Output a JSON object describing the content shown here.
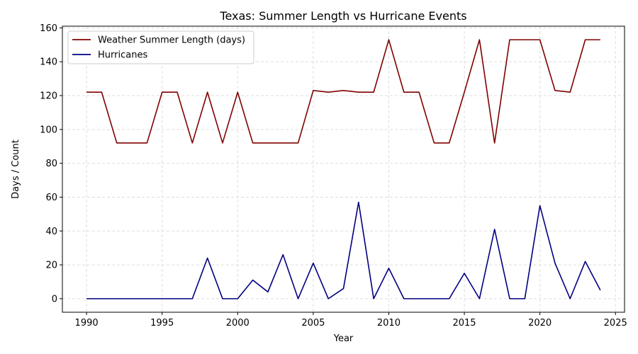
{
  "chart_data": {
    "type": "line",
    "title": "Texas: Summer Length vs Hurricane Events",
    "xlabel": "Year",
    "ylabel": "Days / Count",
    "xlim": [
      1988.4,
      2025.6
    ],
    "ylim": [
      -8,
      161
    ],
    "xticks": [
      1990,
      1995,
      2000,
      2005,
      2010,
      2015,
      2020,
      2025
    ],
    "yticks": [
      0,
      20,
      40,
      60,
      80,
      100,
      120,
      140,
      160
    ],
    "grid": true,
    "legend_position": "top-left",
    "x": [
      1990,
      1991,
      1992,
      1993,
      1994,
      1995,
      1996,
      1997,
      1998,
      1999,
      2000,
      2001,
      2002,
      2003,
      2004,
      2005,
      2006,
      2007,
      2008,
      2009,
      2010,
      2011,
      2012,
      2013,
      2014,
      2015,
      2016,
      2017,
      2018,
      2019,
      2020,
      2021,
      2022,
      2023,
      2024
    ],
    "series": [
      {
        "name": "Weather Summer Length (days)",
        "color": "#800000",
        "values": [
          122,
          122,
          92,
          92,
          92,
          122,
          122,
          92,
          122,
          92,
          122,
          92,
          92,
          92,
          92,
          123,
          122,
          123,
          122,
          122,
          153,
          122,
          122,
          92,
          92,
          122,
          153,
          92,
          153,
          153,
          153,
          123,
          122,
          153,
          153
        ]
      },
      {
        "name": "Hurricanes",
        "color": "#000080",
        "values": [
          0,
          0,
          0,
          0,
          0,
          0,
          0,
          0,
          24,
          0,
          0,
          11,
          4,
          26,
          0,
          21,
          0,
          6,
          57,
          0,
          18,
          0,
          0,
          0,
          0,
          15,
          0,
          41,
          0,
          0,
          55,
          21,
          0,
          22,
          5
        ]
      }
    ]
  }
}
